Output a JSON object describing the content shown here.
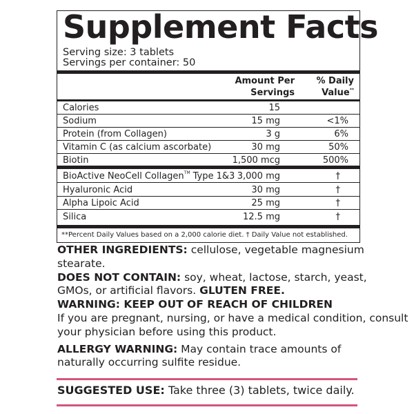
{
  "title": "Supplement Facts",
  "serving_size": "Serving size: 3 tablets",
  "servings_per_container": "Servings per container: 50",
  "header": {
    "amount_1": "Amount Per",
    "amount_2": "Servings",
    "dv_1": "% Daily",
    "dv_2": "Value",
    "dv_mark": "**"
  },
  "nutrients": [
    {
      "name": "Calories",
      "amount": "15",
      "dv": ""
    },
    {
      "name": "Sodium",
      "amount": "15 mg",
      "dv": "<1%"
    },
    {
      "name": "Protein (from Collagen)",
      "amount": "3 g",
      "dv": "6%"
    },
    {
      "name": "Vitamin C (as calcium ascorbate)",
      "amount": "30 mg",
      "dv": "50%"
    },
    {
      "name": "Biotin",
      "amount": "1,500 mcg",
      "dv": "500%"
    }
  ],
  "other": [
    {
      "name": "BioActive NeoCell Collagen",
      "tm": "TM",
      "suffix": " Type 1&3",
      "amount": "3,000 mg",
      "dv": "†"
    },
    {
      "name": "Hyaluronic Acid",
      "amount": "30 mg",
      "dv": "†"
    },
    {
      "name": "Alpha Lipoic Acid",
      "amount": "25 mg",
      "dv": "†"
    },
    {
      "name": "Silica",
      "amount": "12.5 mg",
      "dv": "†"
    }
  ],
  "footnote": "**Percent Daily Values based on a 2,000 calorie diet.  † Daily Value not established.",
  "other_ingredients": {
    "label": "OTHER INGREDIENTS:",
    "text_1": " cellulose, vegetable magnesium",
    "text_2": "stearate."
  },
  "does_not_contain": {
    "label": "DOES NOT CONTAIN:",
    "text_1": " soy, wheat, lactose, starch, yeast,",
    "text_2": "GMOs, or artificial flavors. ",
    "gluten": "GLUTEN FREE."
  },
  "warning": {
    "label": "WARNING: KEEP OUT OF REACH OF CHILDREN",
    "text_1": "If you are pregnant, nursing, or have a medical condition, consult",
    "text_2": "your physician before using this product."
  },
  "allergy": {
    "label": "ALLERGY WARNING:",
    "text_1": " May contain trace amounts of",
    "text_2": "naturally occurring sulfite residue."
  },
  "suggested": {
    "label": "SUGGESTED USE:",
    "text": " Take three (3) tablets, twice daily."
  },
  "colors": {
    "accent": "#d6547a",
    "text": "#231f20"
  }
}
